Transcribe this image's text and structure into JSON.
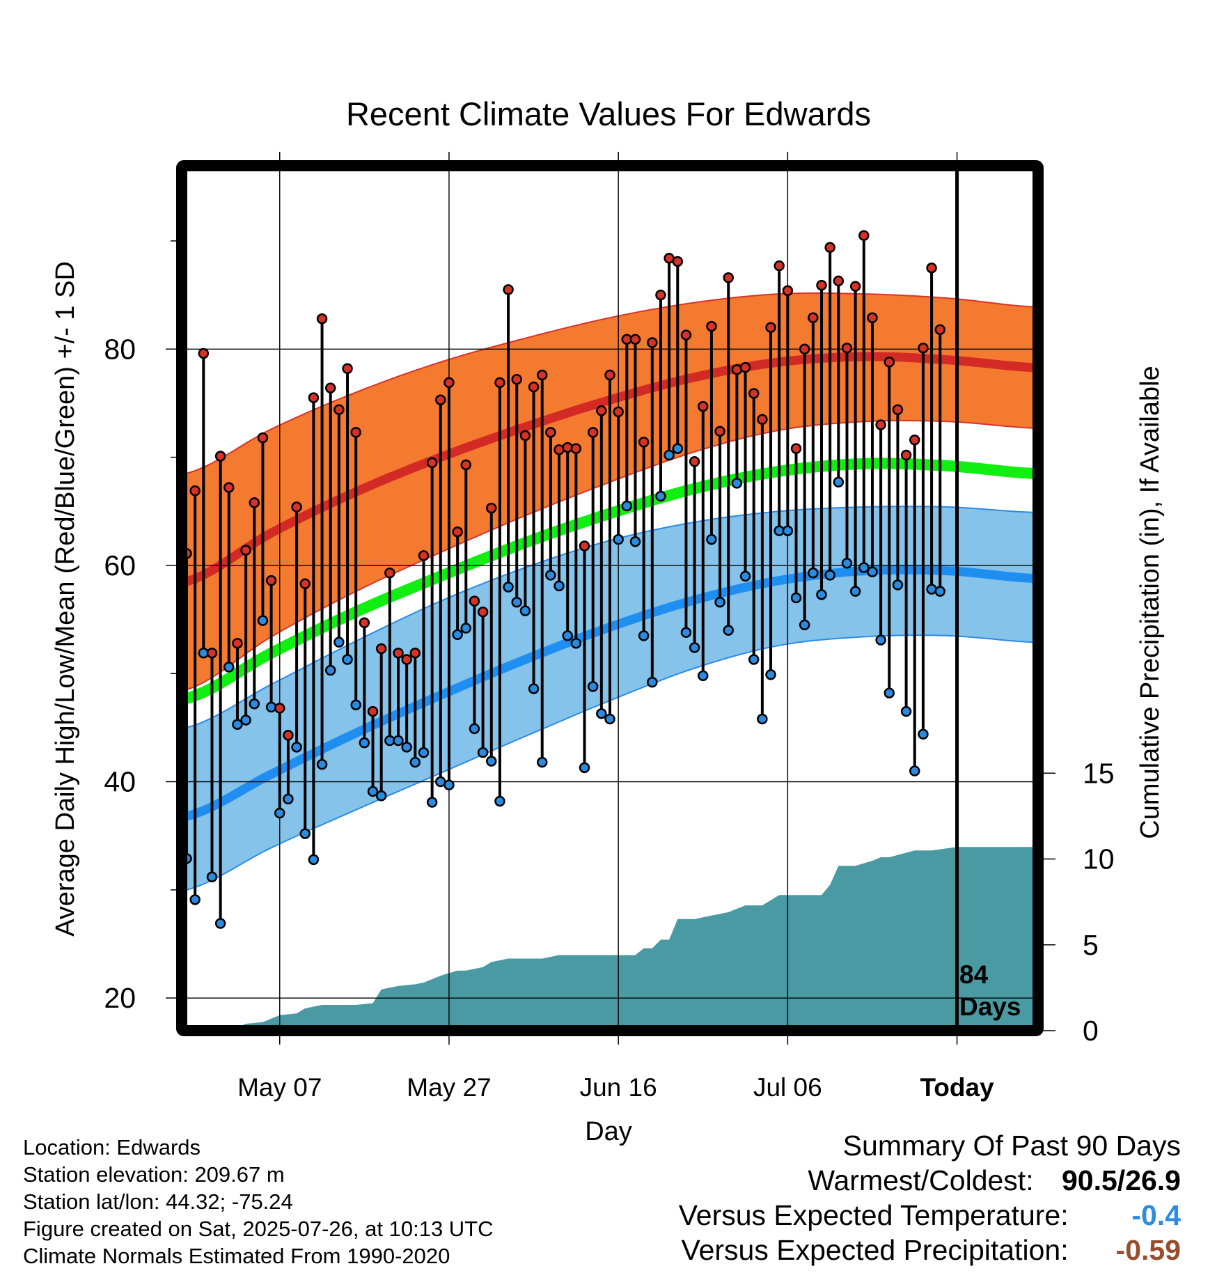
{
  "title": "Recent Climate Values For Edwards",
  "left_axis_label": "Average Daily High/Low/Mean (Red/Blue/Green) +/- 1 SD",
  "right_axis_label": "Cumulative Precipitation (in), If Available",
  "x_axis_label": "Day",
  "days_label": [
    "84",
    "Days"
  ],
  "info": {
    "location": "Location: Edwards",
    "elevation": "Station elevation: 209.67 m",
    "latlon": "Station lat/lon: 44.32; -75.24",
    "created": "Figure created on Sat, 2025-07-26, at 10:13 UTC",
    "normals": "Climate Normals Estimated From 1990-2020"
  },
  "summary": {
    "title": "Summary Of Past 90 Days",
    "warmest_coldest_label": "Warmest/Coldest:",
    "warmest_coldest_value": "90.5/26.9",
    "temp_label": "Versus Expected Temperature:",
    "temp_value": "-0.4",
    "precip_label": "Versus Expected Precipitation:",
    "precip_value": "-0.59"
  },
  "colors": {
    "high_band": "#f47a30",
    "high_mean": "#d32a25",
    "low_band": "#85c3ea",
    "low_mean": "#1f8ef1",
    "mean_line": "#11ee11",
    "precip_fill": "#4a9aa3",
    "high_marker": "#d63228",
    "low_marker": "#2a8be0"
  },
  "chart_data": {
    "type": "line",
    "x_ticks": [
      {
        "day": 11,
        "label": "May 07"
      },
      {
        "day": 31,
        "label": "May 27"
      },
      {
        "day": 51,
        "label": "Jun 16"
      },
      {
        "day": 71,
        "label": "Jul 06"
      },
      {
        "day": 91,
        "label": "Today"
      }
    ],
    "xlim": [
      0,
      100
    ],
    "left_ylim": [
      17.5,
      96.5
    ],
    "left_y_ticks": [
      20,
      40,
      60,
      80
    ],
    "left_y_minor_ticks": [
      30,
      50,
      70,
      90
    ],
    "right_ylim": [
      0,
      50
    ],
    "right_y_ticks": [
      0,
      5,
      10,
      15
    ],
    "today_day": 91,
    "normals": {
      "days": [
        0,
        10,
        20,
        30,
        40,
        50,
        60,
        70,
        80,
        90,
        100
      ],
      "high_mean": [
        58.5,
        63.0,
        66.8,
        70.0,
        72.8,
        75.3,
        77.4,
        78.8,
        79.3,
        79.0,
        78.3
      ],
      "high_upper": [
        68.5,
        72.6,
        76.0,
        78.8,
        81.0,
        82.9,
        84.3,
        85.1,
        85.1,
        84.7,
        83.9
      ],
      "high_lower": [
        48.5,
        53.4,
        57.6,
        61.2,
        64.6,
        67.7,
        70.5,
        72.5,
        73.3,
        73.3,
        72.7
      ],
      "low_mean": [
        36.8,
        40.7,
        44.5,
        48.0,
        51.3,
        54.3,
        56.8,
        58.6,
        59.5,
        59.5,
        58.8
      ],
      "low_upper": [
        45.0,
        49.0,
        53.0,
        56.7,
        59.8,
        62.3,
        64.0,
        65.0,
        65.4,
        65.4,
        64.9
      ],
      "low_lower": [
        30.0,
        33.9,
        37.4,
        40.8,
        44.2,
        47.5,
        50.5,
        52.6,
        53.4,
        53.5,
        52.9
      ],
      "mean": [
        47.7,
        51.9,
        55.7,
        59.0,
        62.1,
        64.8,
        67.1,
        68.7,
        69.4,
        69.2,
        68.5
      ]
    },
    "daily": {
      "highs": [
        61.1,
        66.9,
        79.6,
        51.9,
        70.1,
        67.2,
        52.8,
        61.4,
        65.8,
        71.8,
        58.6,
        46.8,
        44.3,
        65.4,
        58.3,
        75.5,
        82.8,
        76.4,
        74.4,
        78.2,
        72.3,
        54.7,
        46.5,
        52.3,
        59.3,
        51.9,
        51.3,
        51.9,
        60.9,
        69.5,
        75.3,
        76.9,
        63.1,
        69.3,
        56.7,
        55.7,
        65.3,
        76.9,
        85.5,
        77.2,
        72.0,
        76.5,
        77.6,
        72.3,
        70.7,
        70.9,
        70.8,
        61.8,
        72.3,
        74.3,
        77.6,
        74.2,
        80.9,
        80.9,
        71.4,
        80.6,
        85.0,
        88.4,
        88.1,
        81.3,
        69.6,
        74.7,
        82.1,
        72.4,
        86.6,
        78.1,
        78.3,
        75.9,
        73.5,
        82.0,
        87.7,
        85.4,
        70.8,
        80.0,
        82.9,
        85.9,
        89.4,
        86.3,
        80.1,
        85.8,
        90.5,
        82.9,
        73.0,
        78.8,
        74.4,
        70.2,
        71.6,
        80.1,
        87.5,
        81.8
      ],
      "lows": [
        32.9,
        29.1,
        51.9,
        31.2,
        26.9,
        50.6,
        45.3,
        45.7,
        47.2,
        54.9,
        46.9,
        37.1,
        38.4,
        43.2,
        35.2,
        32.8,
        41.6,
        50.3,
        52.9,
        51.3,
        47.1,
        43.6,
        39.1,
        38.7,
        43.8,
        43.8,
        43.2,
        41.8,
        42.7,
        38.1,
        40.0,
        39.7,
        53.6,
        54.2,
        44.9,
        42.7,
        41.9,
        38.2,
        58.0,
        56.6,
        55.8,
        48.6,
        41.8,
        59.1,
        58.1,
        53.5,
        52.8,
        41.3,
        48.8,
        46.3,
        45.8,
        62.4,
        65.5,
        62.2,
        53.5,
        49.2,
        66.4,
        70.2,
        70.8,
        53.8,
        52.4,
        49.8,
        62.4,
        56.6,
        54.0,
        67.6,
        59.0,
        51.3,
        45.8,
        49.9,
        63.2,
        63.2,
        57.0,
        54.5,
        59.3,
        57.3,
        59.1,
        67.7,
        60.2,
        57.6,
        59.8,
        59.4,
        53.1,
        48.2,
        58.2,
        46.5,
        41.0,
        44.4,
        57.8,
        57.6
      ]
    },
    "precip_cumulative": {
      "days": [
        0,
        3,
        4,
        6,
        7,
        9,
        11,
        13,
        14,
        16,
        18,
        20,
        22,
        23,
        25,
        27,
        28,
        30,
        32,
        33,
        35,
        36,
        38,
        42,
        44,
        46,
        50,
        53,
        54,
        55,
        56,
        57,
        58,
        60,
        62,
        64,
        66,
        68,
        70,
        72,
        75,
        76,
        77,
        79,
        81,
        82,
        83,
        86,
        88,
        91,
        100
      ],
      "values": [
        0.0,
        0.0,
        0.1,
        0.2,
        0.4,
        0.5,
        0.9,
        1.0,
        1.3,
        1.5,
        1.5,
        1.5,
        1.6,
        2.4,
        2.6,
        2.7,
        2.8,
        3.2,
        3.5,
        3.5,
        3.7,
        4.0,
        4.2,
        4.2,
        4.4,
        4.4,
        4.4,
        4.4,
        4.8,
        4.8,
        5.3,
        5.3,
        6.5,
        6.5,
        6.7,
        6.9,
        7.3,
        7.3,
        7.9,
        7.9,
        7.9,
        8.5,
        9.6,
        9.6,
        9.9,
        10.1,
        10.1,
        10.5,
        10.5,
        10.7,
        10.7
      ]
    }
  }
}
